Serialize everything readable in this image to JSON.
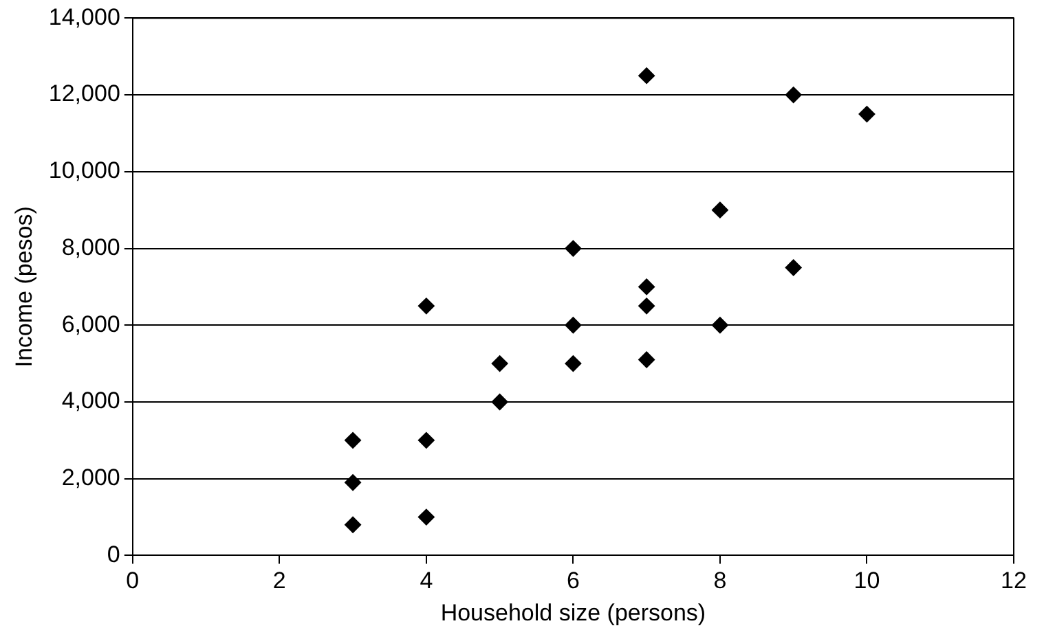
{
  "chart_data": {
    "type": "scatter",
    "xlabel": "Household size (persons)",
    "ylabel": "Income (pesos)",
    "x": [
      3,
      3,
      3,
      4,
      4,
      4,
      5,
      5,
      6,
      6,
      6,
      7,
      7,
      7,
      7,
      8,
      8,
      9,
      9,
      10
    ],
    "values": [
      3000,
      1900,
      800,
      6500,
      3000,
      1000,
      5000,
      4000,
      8000,
      6000,
      5000,
      12500,
      7000,
      6500,
      5100,
      9000,
      6000,
      12000,
      7500,
      11500
    ],
    "color": "#000000",
    "marker": "diamond",
    "xlim": [
      0,
      12
    ],
    "xticks": [
      0,
      2,
      4,
      6,
      8,
      10,
      12
    ],
    "ylim": [
      0,
      14000
    ],
    "yticks": [
      {
        "value": 0,
        "label": "0"
      },
      {
        "value": 2000,
        "label": "2,000"
      },
      {
        "value": 4000,
        "label": "4,000"
      },
      {
        "value": 6000,
        "label": "6,000"
      },
      {
        "value": 8000,
        "label": "8,000"
      },
      {
        "value": 10000,
        "label": "10,000"
      },
      {
        "value": 12000,
        "label": "12,000"
      },
      {
        "value": 14000,
        "label": "14,000"
      }
    ],
    "grid": "y",
    "legend": false
  }
}
